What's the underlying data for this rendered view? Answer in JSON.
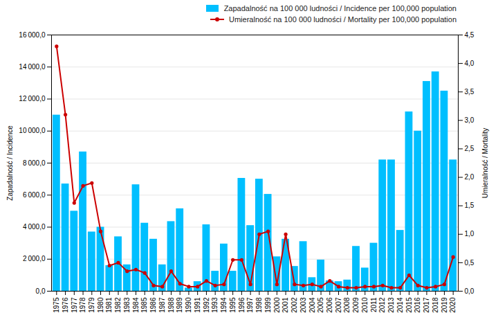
{
  "chart_data": {
    "type": "bar",
    "categories": [
      "1975",
      "1976",
      "1977",
      "1978",
      "1979",
      "1980",
      "1981",
      "1982",
      "1983",
      "1984",
      "1985",
      "1986",
      "1987",
      "1988",
      "1989",
      "1990",
      "1991",
      "1992",
      "1993",
      "1994",
      "1995",
      "1996",
      "1997",
      "1998",
      "1999",
      "2000",
      "2001",
      "2002",
      "2003",
      "2004",
      "2005",
      "2006",
      "2007",
      "2008",
      "2009",
      "2010",
      "2011",
      "2012",
      "2013",
      "2014",
      "2015",
      "2016",
      "2017",
      "2018",
      "2019",
      "2020"
    ],
    "series": [
      {
        "name": "Zapadalność na 100 000 ludności / Incidence per 100,000 population",
        "type": "bar",
        "color": "#00BFFF",
        "values": [
          11000,
          6700,
          5000,
          8700,
          3700,
          4000,
          1600,
          3400,
          1650,
          6650,
          4250,
          3250,
          1650,
          4350,
          5150,
          200,
          600,
          4150,
          1250,
          2950,
          1250,
          7050,
          4100,
          7000,
          6050,
          2150,
          3250,
          1550,
          3100,
          850,
          1950,
          650,
          600,
          700,
          2800,
          1450,
          3000,
          8200,
          8200,
          3800,
          11200,
          10000,
          13100,
          13700,
          12500,
          8200
        ]
      },
      {
        "name": "Umieralność na 100 000 ludności / Mortality per 100,000 population",
        "type": "line",
        "color": "#CC0000",
        "marker": "circle",
        "axis": "y2",
        "values": [
          4.3,
          3.1,
          1.55,
          1.85,
          1.9,
          1.05,
          0.45,
          0.5,
          0.35,
          0.38,
          0.32,
          0.1,
          0.08,
          0.35,
          0.13,
          0.08,
          0.08,
          0.18,
          0.1,
          0.12,
          0.55,
          0.55,
          0.12,
          1.0,
          1.05,
          0.12,
          1.0,
          0.12,
          0.1,
          0.12,
          0.08,
          0.18,
          0.08,
          0.06,
          0.06,
          0.08,
          0.08,
          0.1,
          0.06,
          0.06,
          0.28,
          0.1,
          0.06,
          0.08,
          0.12,
          0.6
        ]
      }
    ],
    "ylabel": "Zapadalność / Incidence",
    "y2label": "Umieralność / Mortality",
    "ylim": [
      0,
      16000
    ],
    "yticks": [
      {
        "value": 0,
        "label": "0,0"
      },
      {
        "value": 2000,
        "label": "2 000,0"
      },
      {
        "value": 4000,
        "label": "4 000,0"
      },
      {
        "value": 6000,
        "label": "6 000,0"
      },
      {
        "value": 8000,
        "label": "8 000,0"
      },
      {
        "value": 10000,
        "label": "10 000,0"
      },
      {
        "value": 12000,
        "label": "12 000,0"
      },
      {
        "value": 14000,
        "label": "14 000,0"
      },
      {
        "value": 16000,
        "label": "16 000,0"
      }
    ],
    "y2lim": [
      0,
      4.5
    ],
    "y2ticks": [
      {
        "value": 0.0,
        "label": "0,0"
      },
      {
        "value": 0.5,
        "label": "0,5"
      },
      {
        "value": 1.0,
        "label": "1,0"
      },
      {
        "value": 1.5,
        "label": "1,5"
      },
      {
        "value": 2.0,
        "label": "2,0"
      },
      {
        "value": 2.5,
        "label": "2,5"
      },
      {
        "value": 3.0,
        "label": "3,0"
      },
      {
        "value": 3.5,
        "label": "3,5"
      },
      {
        "value": 4.0,
        "label": "4,0"
      },
      {
        "value": 4.5,
        "label": "4,5"
      }
    ],
    "grid": true,
    "legend": "top-right"
  }
}
